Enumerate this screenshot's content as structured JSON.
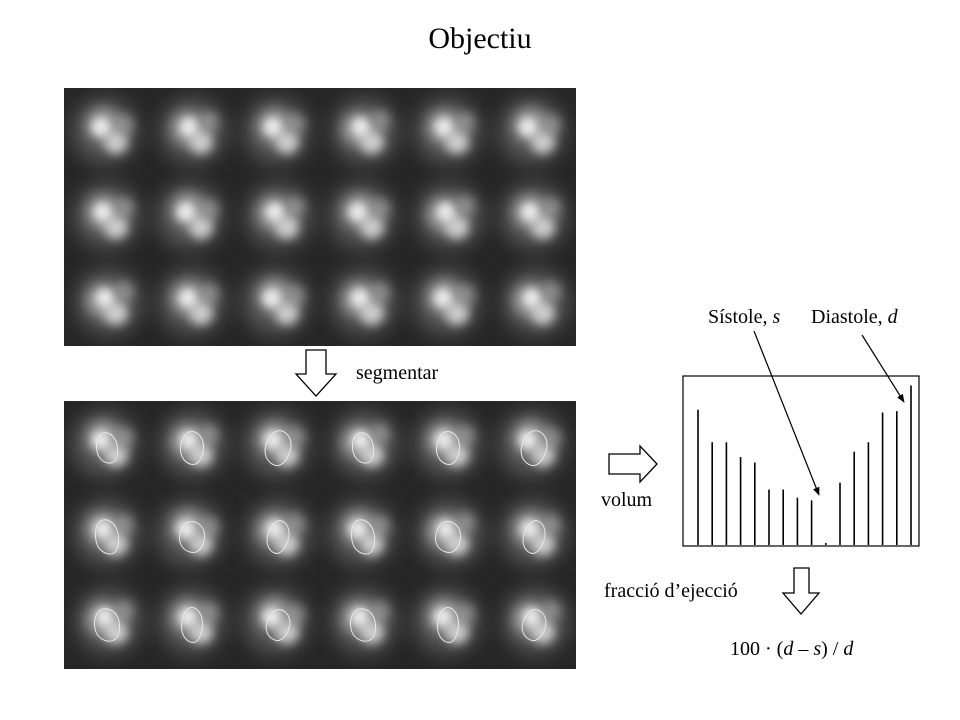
{
  "title": "Objectiu",
  "labels": {
    "segment": "segmentar",
    "volume": "volum",
    "ejection": "fracció d’ejecció",
    "systole_text": "Sístole, ",
    "systole_var": "s",
    "diastole_text": "Diastole, ",
    "diastole_var": "d"
  },
  "formula": {
    "prefix": "100 · (",
    "d1": "d",
    "minus": " – ",
    "s": "s",
    "close": ") / ",
    "d2": "d"
  },
  "grid": {
    "rows": 3,
    "cols": 6
  },
  "colors": {
    "panel_bg": "#262626",
    "contour": "#e8e8e8",
    "ink": "#000000"
  },
  "chart_data": {
    "type": "bar",
    "values": [
      10,
      7.6,
      7.6,
      6.5,
      6.1,
      4.1,
      4.1,
      3.5,
      3.3,
      0,
      4.6,
      6.9,
      7.6,
      9.8,
      9.9,
      11.8
    ],
    "ylim": [
      0,
      12.5
    ]
  }
}
